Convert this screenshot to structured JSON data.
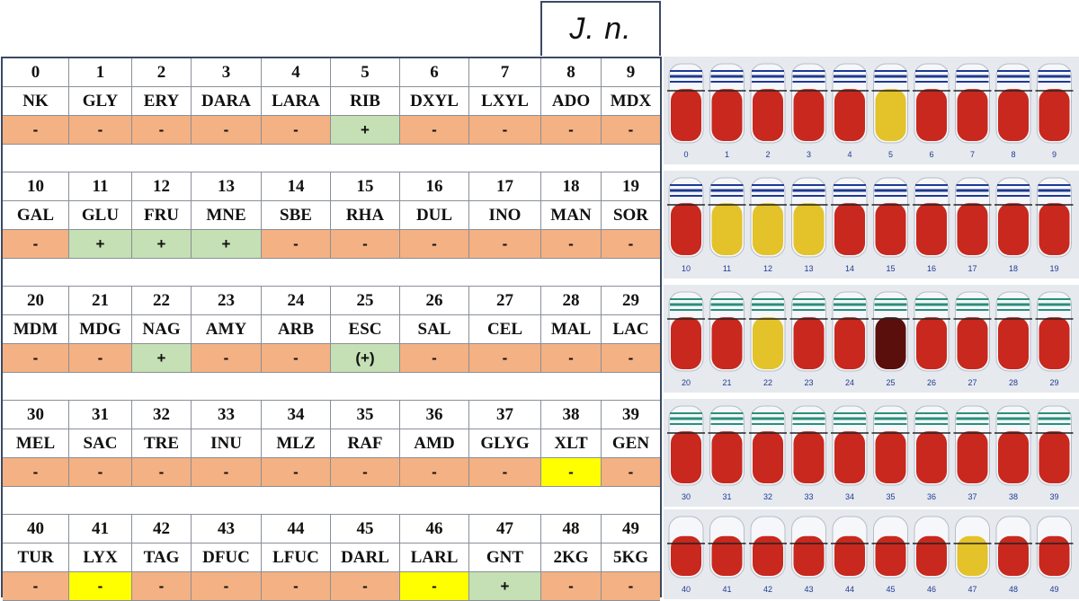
{
  "species_label": "J. n.",
  "blocks": [
    {
      "numbers": [
        "0",
        "1",
        "2",
        "3",
        "4",
        "5",
        "6",
        "7",
        "8",
        "9"
      ],
      "codes": [
        "NK",
        "GLY",
        "ERY",
        "DARA",
        "LARA",
        "RIB",
        "DXYL",
        "LXYL",
        "ADO",
        "MDX"
      ],
      "results": [
        "-",
        "-",
        "-",
        "-",
        "-",
        "+",
        "-",
        "-",
        "-",
        "-"
      ],
      "colors": [
        "neg",
        "neg",
        "neg",
        "neg",
        "neg",
        "pos",
        "neg",
        "neg",
        "neg",
        "neg"
      ]
    },
    {
      "numbers": [
        "10",
        "11",
        "12",
        "13",
        "14",
        "15",
        "16",
        "17",
        "18",
        "19"
      ],
      "codes": [
        "GAL",
        "GLU",
        "FRU",
        "MNE",
        "SBE",
        "RHA",
        "DUL",
        "INO",
        "MAN",
        "SOR"
      ],
      "results": [
        "-",
        "+",
        "+",
        "+",
        "-",
        "-",
        "-",
        "-",
        "-",
        "-"
      ],
      "colors": [
        "neg",
        "pos",
        "pos",
        "pos",
        "neg",
        "neg",
        "neg",
        "neg",
        "neg",
        "neg"
      ]
    },
    {
      "numbers": [
        "20",
        "21",
        "22",
        "23",
        "24",
        "25",
        "26",
        "27",
        "28",
        "29"
      ],
      "codes": [
        "MDM",
        "MDG",
        "NAG",
        "AMY",
        "ARB",
        "ESC",
        "SAL",
        "CEL",
        "MAL",
        "LAC"
      ],
      "results": [
        "-",
        "-",
        "+",
        "-",
        "-",
        "(+)",
        "-",
        "-",
        "-",
        "-"
      ],
      "colors": [
        "neg",
        "neg",
        "pos",
        "neg",
        "neg",
        "pos",
        "neg",
        "neg",
        "neg",
        "neg"
      ]
    },
    {
      "numbers": [
        "30",
        "31",
        "32",
        "33",
        "34",
        "35",
        "36",
        "37",
        "38",
        "39"
      ],
      "codes": [
        "MEL",
        "SAC",
        "TRE",
        "INU",
        "MLZ",
        "RAF",
        "AMD",
        "GLYG",
        "XLT",
        "GEN"
      ],
      "results": [
        "-",
        "-",
        "-",
        "-",
        "-",
        "-",
        "-",
        "-",
        "-",
        "-"
      ],
      "colors": [
        "neg",
        "neg",
        "neg",
        "neg",
        "neg",
        "neg",
        "neg",
        "neg",
        "wk",
        "neg"
      ]
    },
    {
      "numbers": [
        "40",
        "41",
        "42",
        "43",
        "44",
        "45",
        "46",
        "47",
        "48",
        "49"
      ],
      "codes": [
        "TUR",
        "LYX",
        "TAG",
        "DFUC",
        "LFUC",
        "DARL",
        "LARL",
        "GNT",
        "2KG",
        "5KG"
      ],
      "results": [
        "-",
        "-",
        "-",
        "-",
        "-",
        "-",
        "-",
        "+",
        "-",
        "-"
      ],
      "colors": [
        "neg",
        "wk",
        "neg",
        "neg",
        "neg",
        "neg",
        "wk",
        "pos",
        "neg",
        "neg"
      ]
    }
  ],
  "strips": [
    {
      "labels": [
        "0",
        "1",
        "2",
        "3",
        "4",
        "5",
        "6",
        "7",
        "8",
        "9"
      ],
      "yellow": [
        5
      ],
      "brown": [],
      "cap": "blue"
    },
    {
      "labels": [
        "10",
        "11",
        "12",
        "13",
        "14",
        "15",
        "16",
        "17",
        "18",
        "19"
      ],
      "yellow": [
        1,
        2,
        3
      ],
      "brown": [],
      "cap": "blue"
    },
    {
      "labels": [
        "20",
        "21",
        "22",
        "23",
        "24",
        "25",
        "26",
        "27",
        "28",
        "29"
      ],
      "yellow": [
        2
      ],
      "brown": [
        5
      ],
      "cap": "green"
    },
    {
      "labels": [
        "30",
        "31",
        "32",
        "33",
        "34",
        "35",
        "36",
        "37",
        "38",
        "39"
      ],
      "yellow": [],
      "brown": [],
      "cap": "green"
    },
    {
      "labels": [
        "40",
        "41",
        "42",
        "43",
        "44",
        "45",
        "46",
        "47",
        "48",
        "49"
      ],
      "yellow": [
        7
      ],
      "brown": [],
      "cap": "none"
    }
  ],
  "colors": {
    "negative": "#f4b183",
    "positive": "#c5e0b4",
    "weak": "#ffff00",
    "border": "#3b4a63",
    "tube_red": "#c8281e",
    "tube_yellow": "#e3c22a",
    "tube_brown": "#5a0f0c"
  }
}
